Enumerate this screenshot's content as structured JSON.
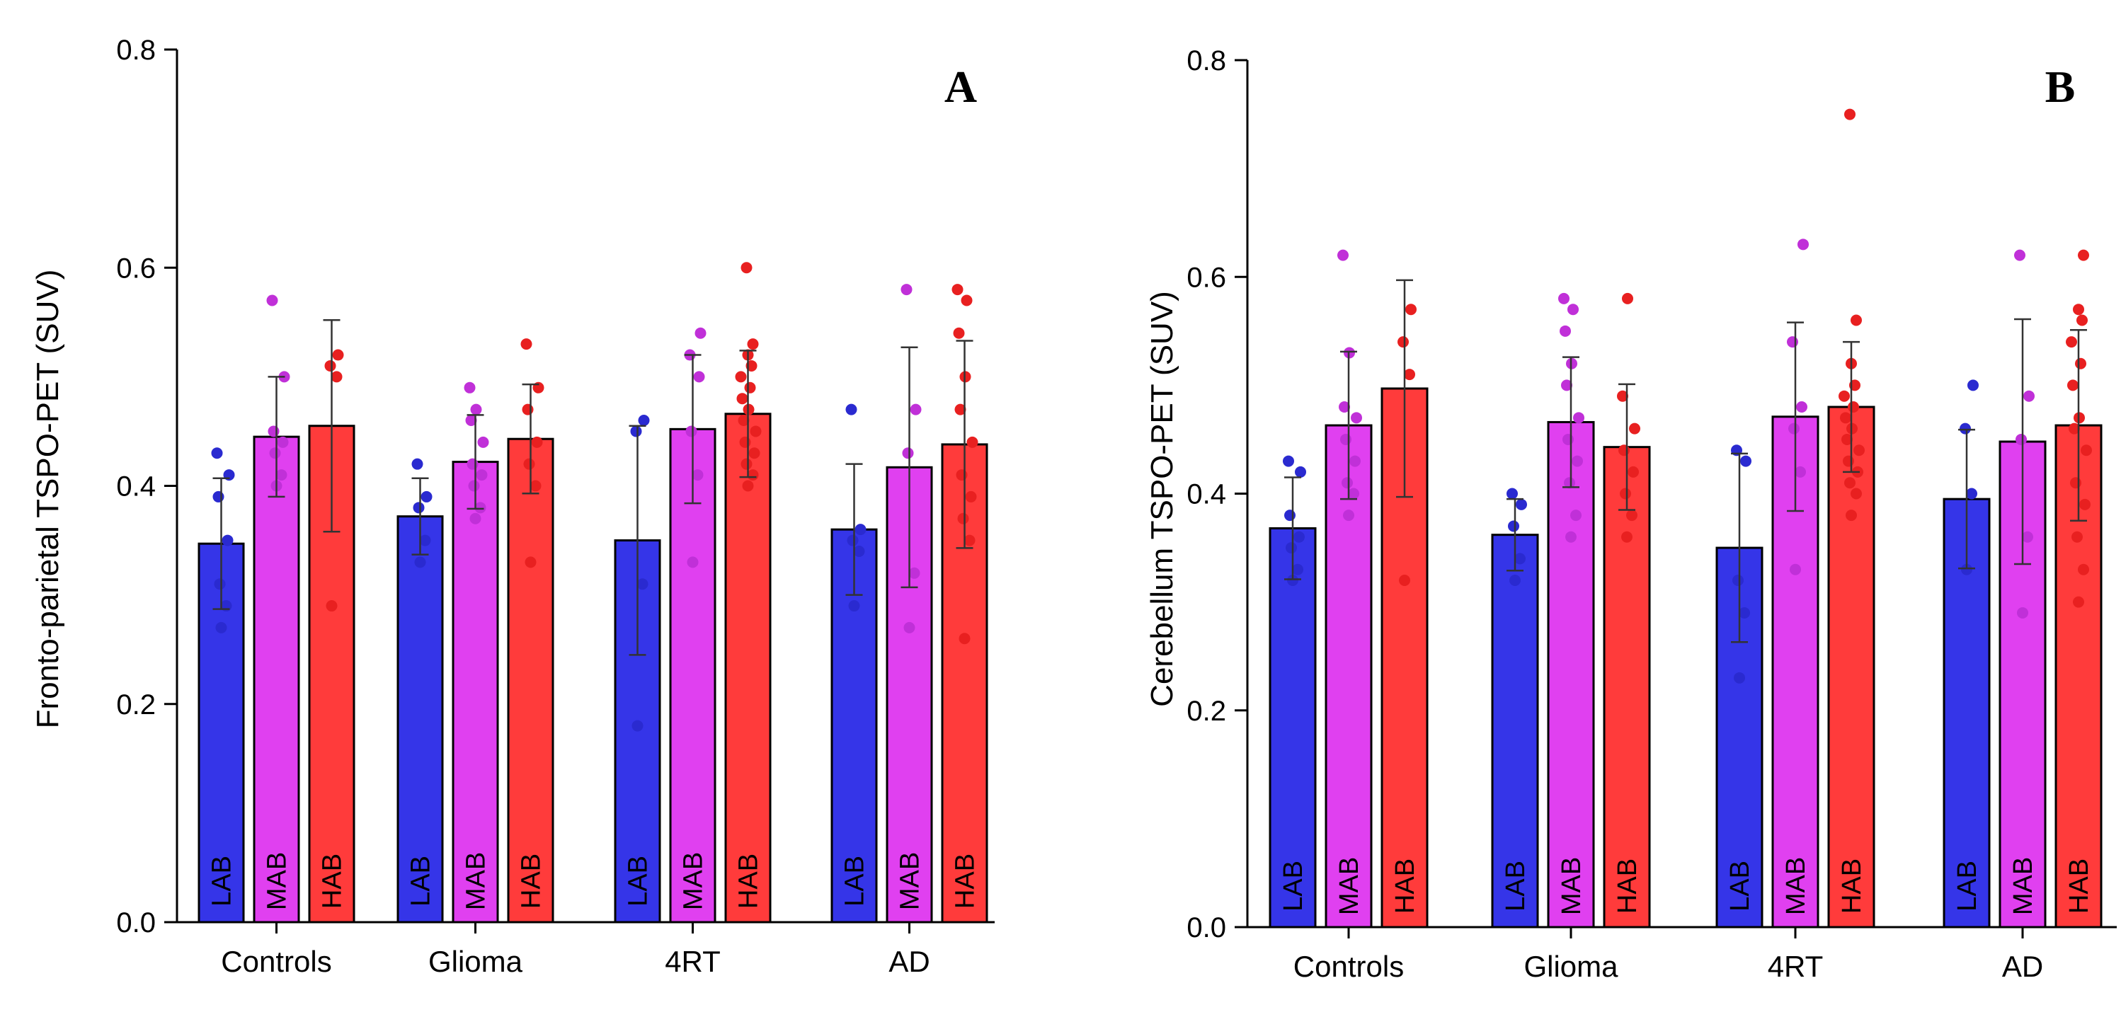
{
  "colors": {
    "LAB": "#3535e8",
    "MAB": "#e040f0",
    "HAB": "#ff3b3b",
    "LAB_dot": "#2a2ad0",
    "MAB_dot": "#c030d8",
    "HAB_dot": "#e82020"
  },
  "chart_data": [
    {
      "type": "bar",
      "panel": "A",
      "title": "",
      "xlabel": "",
      "ylabel": "Fronto-parietal TSPO-PET (SUV)",
      "ylim": [
        0,
        0.8
      ],
      "yticks": [
        0.0,
        0.2,
        0.4,
        0.6,
        0.8
      ],
      "ytick_labels": [
        "0.0",
        "0.2",
        "0.4",
        "0.6",
        "0.8"
      ],
      "categories": [
        "Controls",
        "Glioma",
        "4RT",
        "AD"
      ],
      "bar_labels": [
        "LAB",
        "MAB",
        "HAB"
      ],
      "series": [
        {
          "name": "LAB",
          "values": [
            0.347,
            0.372,
            0.35,
            0.36
          ],
          "sd": [
            0.06,
            0.035,
            0.105,
            0.06
          ],
          "points": [
            [
              0.27,
              0.29,
              0.31,
              0.35,
              0.39,
              0.41,
              0.43
            ],
            [
              0.33,
              0.35,
              0.38,
              0.39,
              0.42
            ],
            [
              0.18,
              0.31,
              0.45,
              0.46
            ],
            [
              0.29,
              0.34,
              0.35,
              0.36,
              0.47
            ]
          ]
        },
        {
          "name": "MAB",
          "values": [
            0.445,
            0.422,
            0.452,
            0.417
          ],
          "sd": [
            0.055,
            0.043,
            0.068,
            0.11
          ],
          "points": [
            [
              0.4,
              0.41,
              0.43,
              0.44,
              0.45,
              0.5,
              0.57
            ],
            [
              0.37,
              0.38,
              0.4,
              0.41,
              0.42,
              0.44,
              0.46,
              0.47,
              0.49
            ],
            [
              0.33,
              0.41,
              0.45,
              0.5,
              0.52,
              0.54
            ],
            [
              0.27,
              0.32,
              0.43,
              0.47,
              0.58
            ]
          ]
        },
        {
          "name": "HAB",
          "values": [
            0.455,
            0.443,
            0.466,
            0.438
          ],
          "sd": [
            0.097,
            0.05,
            0.058,
            0.095
          ],
          "points": [
            [
              0.29,
              0.5,
              0.51,
              0.52
            ],
            [
              0.33,
              0.4,
              0.42,
              0.44,
              0.47,
              0.49,
              0.53
            ],
            [
              0.4,
              0.41,
              0.42,
              0.43,
              0.44,
              0.45,
              0.46,
              0.47,
              0.48,
              0.49,
              0.5,
              0.51,
              0.52,
              0.53,
              0.6
            ],
            [
              0.26,
              0.35,
              0.37,
              0.39,
              0.41,
              0.44,
              0.47,
              0.5,
              0.54,
              0.57,
              0.58
            ]
          ]
        }
      ]
    },
    {
      "type": "bar",
      "panel": "B",
      "title": "",
      "xlabel": "",
      "ylabel": "Cerebellum TSPO-PET (SUV)",
      "ylim": [
        0,
        0.8
      ],
      "yticks": [
        0.0,
        0.2,
        0.4,
        0.6,
        0.8
      ],
      "ytick_labels": [
        "0.0",
        "0.2",
        "0.4",
        "0.6",
        "0.8"
      ],
      "categories": [
        "Controls",
        "Glioma",
        "4RT",
        "AD"
      ],
      "bar_labels": [
        "LAB",
        "MAB",
        "HAB"
      ],
      "series": [
        {
          "name": "LAB",
          "values": [
            0.368,
            0.362,
            0.35,
            0.395
          ],
          "sd": [
            0.047,
            0.033,
            0.087,
            0.064
          ],
          "points": [
            [
              0.32,
              0.33,
              0.35,
              0.36,
              0.38,
              0.42,
              0.43
            ],
            [
              0.32,
              0.34,
              0.37,
              0.39,
              0.4
            ],
            [
              0.23,
              0.29,
              0.32,
              0.43,
              0.44
            ],
            [
              0.33,
              0.4,
              0.46,
              0.5
            ]
          ]
        },
        {
          "name": "MAB",
          "values": [
            0.463,
            0.466,
            0.471,
            0.448
          ],
          "sd": [
            0.068,
            0.06,
            0.087,
            0.113
          ],
          "points": [
            [
              0.38,
              0.4,
              0.41,
              0.43,
              0.45,
              0.47,
              0.48,
              0.53,
              0.62
            ],
            [
              0.36,
              0.38,
              0.41,
              0.43,
              0.45,
              0.47,
              0.5,
              0.52,
              0.55,
              0.57,
              0.58
            ],
            [
              0.33,
              0.42,
              0.46,
              0.48,
              0.54,
              0.63
            ],
            [
              0.29,
              0.36,
              0.45,
              0.49,
              0.62
            ]
          ]
        },
        {
          "name": "HAB",
          "values": [
            0.497,
            0.443,
            0.48,
            0.463
          ],
          "sd": [
            0.1,
            0.058,
            0.06,
            0.088
          ],
          "points": [
            [
              0.32,
              0.51,
              0.54,
              0.57
            ],
            [
              0.36,
              0.38,
              0.4,
              0.42,
              0.44,
              0.46,
              0.49,
              0.58
            ],
            [
              0.38,
              0.4,
              0.41,
              0.42,
              0.43,
              0.44,
              0.45,
              0.46,
              0.47,
              0.48,
              0.49,
              0.5,
              0.52,
              0.56,
              0.75
            ],
            [
              0.3,
              0.33,
              0.36,
              0.39,
              0.41,
              0.44,
              0.46,
              0.47,
              0.5,
              0.52,
              0.54,
              0.56,
              0.57,
              0.62
            ]
          ]
        }
      ]
    }
  ]
}
